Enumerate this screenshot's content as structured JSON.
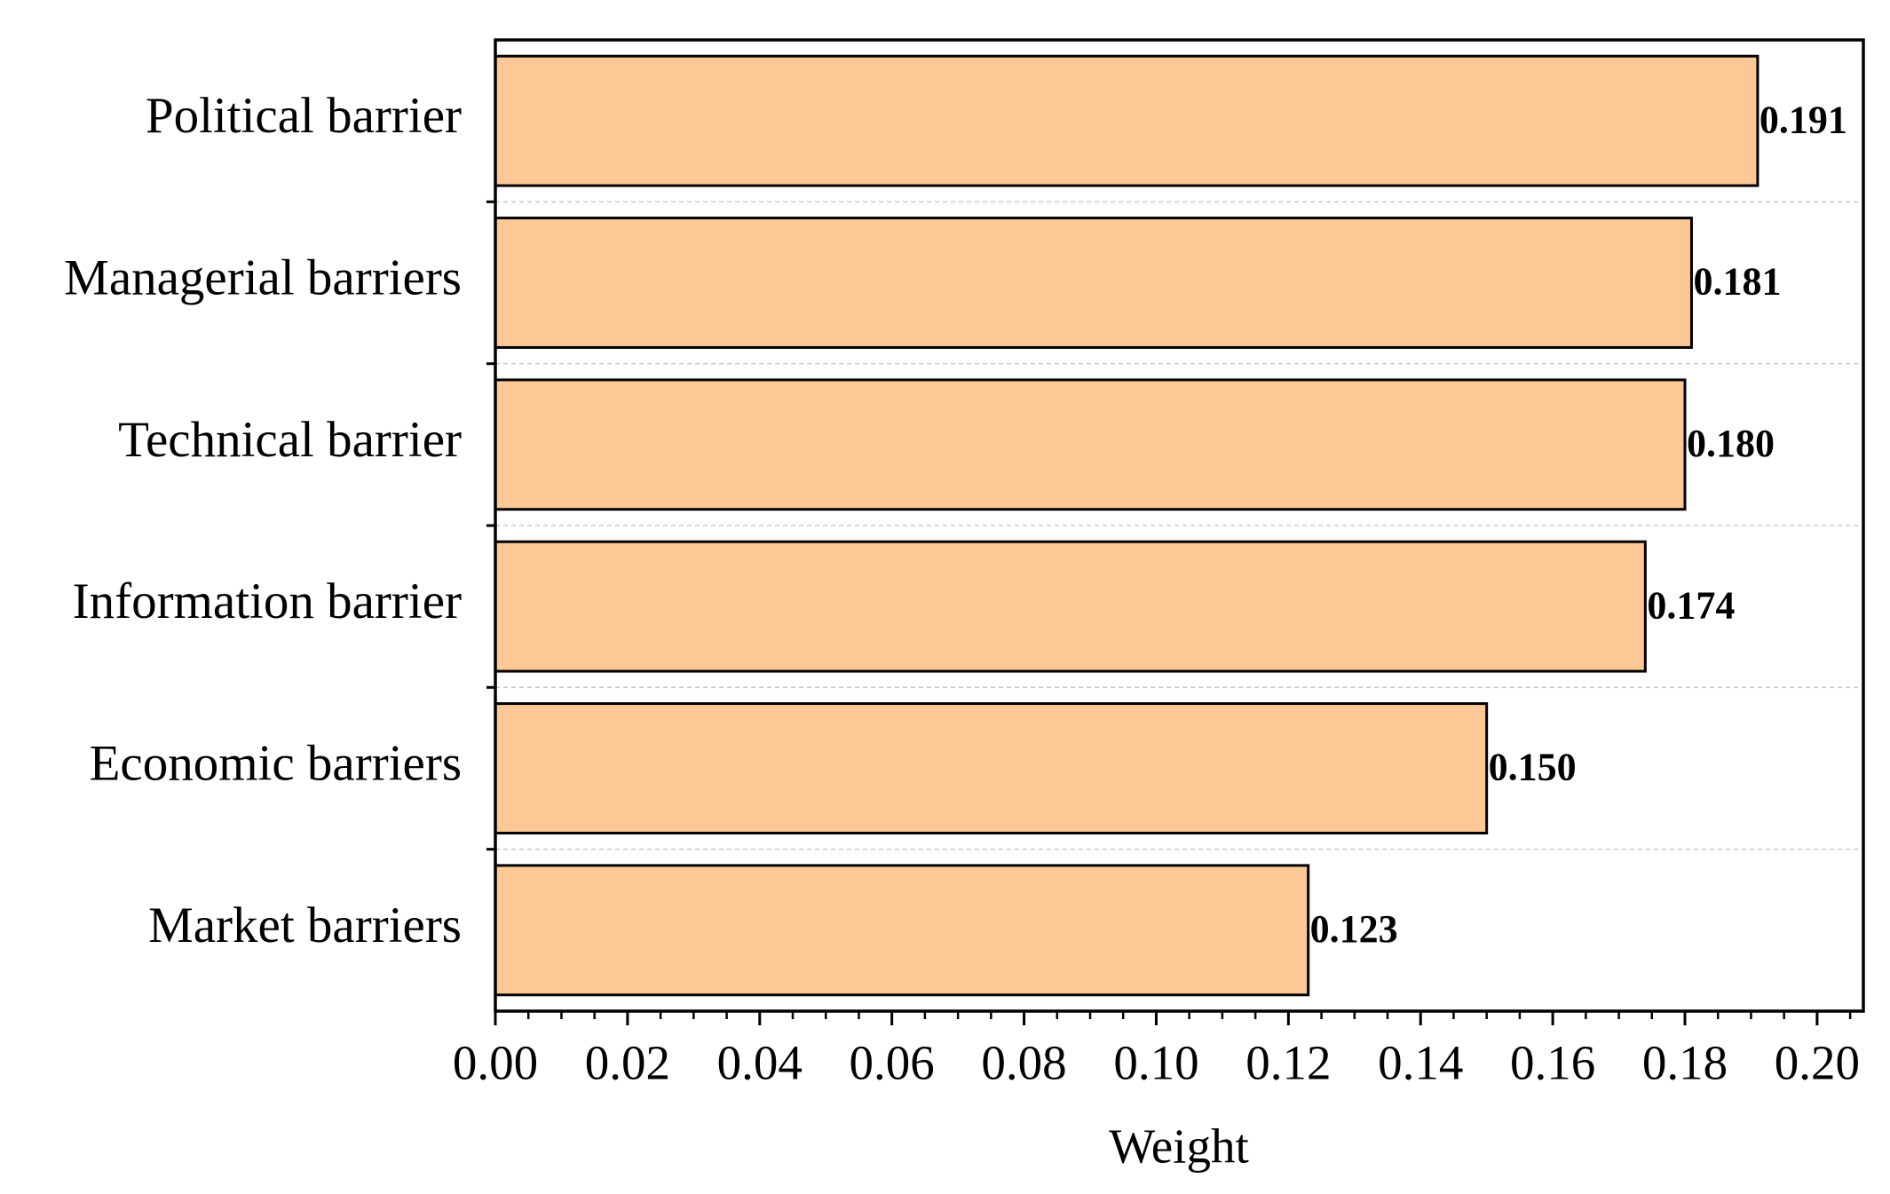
{
  "chart_data": {
    "type": "barh",
    "categories": [
      "Political barrier",
      "Managerial barriers",
      "Technical barrier",
      "Information barrier",
      "Economic barriers",
      "Market barriers"
    ],
    "values": [
      0.191,
      0.181,
      0.18,
      0.174,
      0.15,
      0.123
    ],
    "value_labels": [
      "0.191",
      "0.181",
      "0.180",
      "0.174",
      "0.150",
      "0.123"
    ],
    "color": "#fdc896",
    "x_label": "Weight",
    "xlim": [
      0,
      0.207
    ],
    "xticks": [
      {
        "value": 0,
        "label": "0.00"
      },
      {
        "value": 0.02,
        "label": "0.02"
      },
      {
        "value": 0.04,
        "label": "0.04"
      },
      {
        "value": 0.06,
        "label": "0.06"
      },
      {
        "value": 0.08,
        "label": "0.08"
      },
      {
        "value": 0.1,
        "label": "0.10"
      },
      {
        "value": 0.12,
        "label": "0.12"
      },
      {
        "value": 0.14,
        "label": "0.14"
      },
      {
        "value": 0.16,
        "label": "0.16"
      },
      {
        "value": 0.18,
        "label": "0.18"
      },
      {
        "value": 0.2,
        "label": "0.20"
      }
    ]
  }
}
